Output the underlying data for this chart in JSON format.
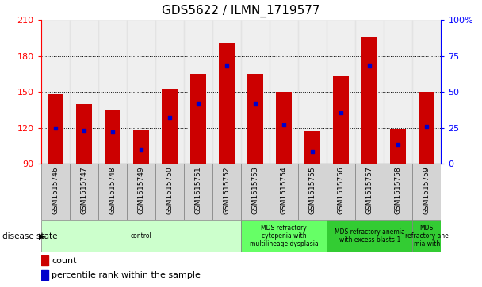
{
  "title": "GDS5622 / ILMN_1719577",
  "samples": [
    "GSM1515746",
    "GSM1515747",
    "GSM1515748",
    "GSM1515749",
    "GSM1515750",
    "GSM1515751",
    "GSM1515752",
    "GSM1515753",
    "GSM1515754",
    "GSM1515755",
    "GSM1515756",
    "GSM1515757",
    "GSM1515758",
    "GSM1515759"
  ],
  "counts": [
    148,
    140,
    135,
    118,
    152,
    165,
    191,
    165,
    150,
    117,
    163,
    196,
    119,
    150
  ],
  "percentile_ranks": [
    25,
    23,
    22,
    10,
    32,
    42,
    68,
    42,
    27,
    8,
    35,
    68,
    13,
    26
  ],
  "y_min": 90,
  "y_max": 210,
  "y_ticks_left": [
    90,
    120,
    150,
    180,
    210
  ],
  "y_ticks_right": [
    0,
    25,
    50,
    75,
    100
  ],
  "bar_color": "#cc0000",
  "marker_color": "#0000cc",
  "col_bg_color": "#e0e0e0",
  "disease_groups": [
    {
      "label": "control",
      "start": 0,
      "end": 7,
      "color": "#ccffcc"
    },
    {
      "label": "MDS refractory\ncytopenia with\nmultilineage dysplasia",
      "start": 7,
      "end": 10,
      "color": "#66ff66"
    },
    {
      "label": "MDS refractory anemia\nwith excess blasts-1",
      "start": 10,
      "end": 13,
      "color": "#33cc33"
    },
    {
      "label": "MDS\nrefractory ane\nmia with",
      "start": 13,
      "end": 14,
      "color": "#33cc33"
    }
  ],
  "legend_items": [
    {
      "label": "count",
      "color": "#cc0000",
      "marker": "s"
    },
    {
      "label": "percentile rank within the sample",
      "color": "#0000cc",
      "marker": "s"
    }
  ]
}
